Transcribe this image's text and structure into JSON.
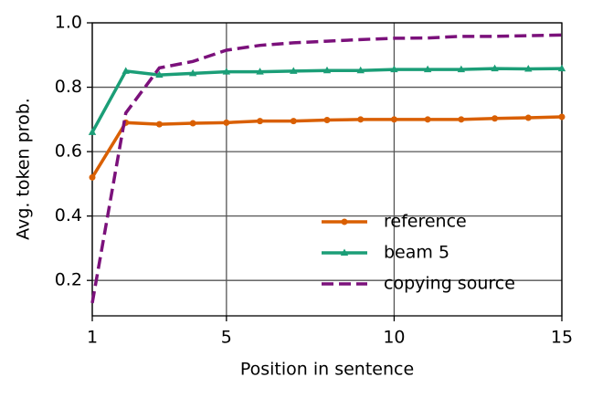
{
  "chart_data": {
    "type": "line",
    "x_label": "Position in sentence",
    "y_label": "Avg. token prob.",
    "x": [
      1,
      2,
      3,
      4,
      5,
      6,
      7,
      8,
      9,
      10,
      11,
      12,
      13,
      14,
      15
    ],
    "series": [
      {
        "name": "reference",
        "color": "#d95f02",
        "marker": "circle",
        "dash": false,
        "values": [
          0.52,
          0.69,
          0.685,
          0.688,
          0.69,
          0.695,
          0.695,
          0.698,
          0.7,
          0.7,
          0.7,
          0.7,
          0.703,
          0.705,
          0.708
        ]
      },
      {
        "name": "beam 5",
        "color": "#1b9e77",
        "marker": "triangle",
        "dash": false,
        "values": [
          0.66,
          0.85,
          0.838,
          0.843,
          0.848,
          0.848,
          0.85,
          0.852,
          0.852,
          0.855,
          0.855,
          0.855,
          0.858,
          0.857,
          0.858
        ]
      },
      {
        "name": "copying source",
        "color": "#7b117b",
        "marker": "none",
        "dash": true,
        "values": [
          0.13,
          0.72,
          0.86,
          0.88,
          0.915,
          0.93,
          0.938,
          0.943,
          0.948,
          0.952,
          0.953,
          0.958,
          0.958,
          0.96,
          0.962
        ]
      }
    ],
    "xlim": [
      1,
      15
    ],
    "xticks": [
      1,
      5,
      10,
      15
    ],
    "ylim": [
      0.09,
      1.0
    ],
    "yticks": [
      0.2,
      0.4,
      0.6,
      0.8,
      {
        "value": 1,
        "label": "1.0"
      }
    ],
    "grid": true,
    "legend": "lower right"
  }
}
